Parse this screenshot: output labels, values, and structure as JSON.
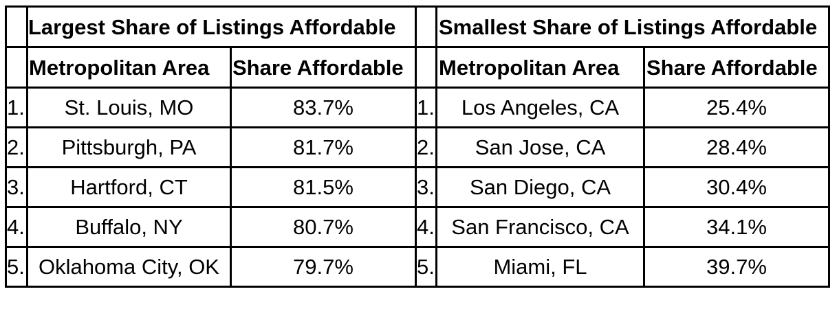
{
  "left_table": {
    "title": "Largest Share of Listings Affordable",
    "col_area": "Metropolitan Area",
    "col_share": "Share Affordable",
    "rows": [
      {
        "rank": "1.",
        "area": "St. Louis, MO",
        "share": "83.7%"
      },
      {
        "rank": "2.",
        "area": "Pittsburgh, PA",
        "share": "81.7%"
      },
      {
        "rank": "3.",
        "area": "Hartford, CT",
        "share": "81.5%"
      },
      {
        "rank": "4.",
        "area": "Buffalo, NY",
        "share": "80.7%"
      },
      {
        "rank": "5.",
        "area": "Oklahoma City, OK",
        "share": "79.7%"
      }
    ]
  },
  "right_table": {
    "title": "Smallest Share of Listings Affordable",
    "col_area": "Metropolitan Area",
    "col_share": "Share Affordable",
    "rows": [
      {
        "rank": "1.",
        "area": "Los Angeles, CA",
        "share": "25.4%"
      },
      {
        "rank": "2.",
        "area": "San Jose, CA",
        "share": "28.4%"
      },
      {
        "rank": "3.",
        "area": "San Diego, CA",
        "share": "30.4%"
      },
      {
        "rank": "4.",
        "area": "San Francisco, CA",
        "share": "34.1%"
      },
      {
        "rank": "5.",
        "area": "Miami, FL",
        "share": "39.7%"
      }
    ]
  }
}
